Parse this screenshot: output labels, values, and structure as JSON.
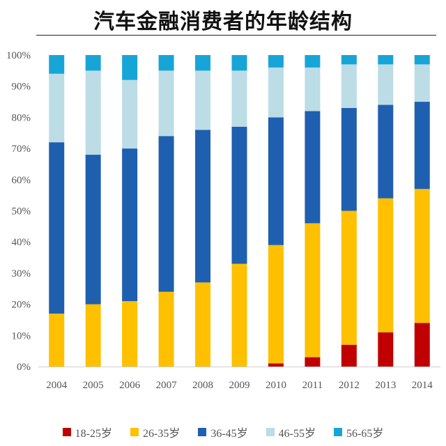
{
  "chart_data": {
    "type": "bar",
    "stacked": true,
    "title": "汽车金融消费者的年龄结构",
    "xlabel": "",
    "ylabel": "",
    "ylim": [
      0,
      100
    ],
    "ytick_values": [
      0,
      10,
      20,
      30,
      40,
      50,
      60,
      70,
      80,
      90,
      100
    ],
    "ytick_labels": [
      "0%",
      "10%",
      "20%",
      "30%",
      "40%",
      "50%",
      "60%",
      "70%",
      "80%",
      "90%",
      "100%"
    ],
    "categories": [
      "2004",
      "2005",
      "2006",
      "2007",
      "2008",
      "2009",
      "2010",
      "2011",
      "2012",
      "2013",
      "2014"
    ],
    "legend_position": "bottom",
    "series": [
      {
        "name": "18-25岁",
        "color": "#C00000",
        "values": [
          0,
          0,
          0,
          0,
          0,
          0,
          1,
          3,
          7,
          11,
          14
        ]
      },
      {
        "name": "26-35岁",
        "color": "#FFC000",
        "values": [
          17,
          20,
          21,
          24,
          27,
          33,
          38,
          43,
          43,
          43,
          43
        ]
      },
      {
        "name": "36-45岁",
        "color": "#1F5FAF",
        "values": [
          55,
          48,
          49,
          50,
          49,
          44,
          41,
          36,
          33,
          30,
          28
        ]
      },
      {
        "name": "46-55岁",
        "color": "#BCDCE6",
        "values": [
          22,
          27,
          22,
          21,
          19,
          18,
          16,
          14,
          14,
          13,
          12
        ]
      },
      {
        "name": "56-65岁",
        "color": "#17A5D8",
        "values": [
          6,
          5,
          8,
          5,
          5,
          5,
          4,
          4,
          3,
          3,
          3
        ]
      }
    ]
  }
}
